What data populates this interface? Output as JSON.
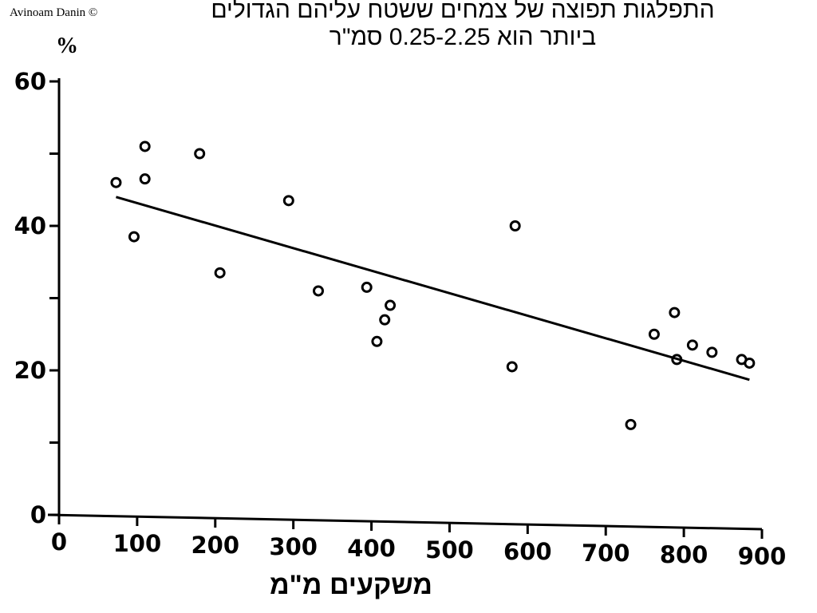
{
  "copyright": "Avinoam Danin ©",
  "title_line1": "התפלגות תפוצה של צמחים ששטח עליהם הגדולים",
  "title_line2": "ביותר הוא 0.25-2.25 סמ\"ר",
  "colors": {
    "ink": "#000000",
    "background": "#ffffff"
  },
  "chart_data": {
    "type": "scatter",
    "ylabel": "%",
    "xlabel": "משקעים מ\"מ",
    "xlim": [
      0,
      900
    ],
    "ylim": [
      0,
      60
    ],
    "x_ticks": [
      0,
      100,
      200,
      300,
      400,
      500,
      600,
      700,
      800,
      900
    ],
    "y_tick_labels": [
      0,
      20,
      40,
      60
    ],
    "y_ticks": [
      0,
      10,
      20,
      30,
      40,
      50,
      60
    ],
    "grid": false,
    "series": [
      {
        "points": [
          [
            73,
            46
          ],
          [
            96,
            38.5
          ],
          [
            110,
            51
          ],
          [
            110,
            46.5
          ],
          [
            180,
            50
          ],
          [
            206,
            33.5
          ],
          [
            294,
            43.5
          ],
          [
            332,
            31
          ],
          [
            394,
            31.5
          ],
          [
            407,
            24
          ],
          [
            417,
            27
          ],
          [
            424,
            29
          ],
          [
            584,
            40
          ],
          [
            580,
            20.5
          ],
          [
            732,
            12.5
          ],
          [
            762,
            25
          ],
          [
            788,
            28
          ],
          [
            791,
            21.5
          ],
          [
            811,
            23.5
          ],
          [
            836,
            22.5
          ],
          [
            874,
            21.5
          ],
          [
            884,
            21
          ]
        ]
      }
    ],
    "trend_line": {
      "x": [
        73,
        884
      ],
      "y": [
        44,
        18.7
      ]
    }
  }
}
